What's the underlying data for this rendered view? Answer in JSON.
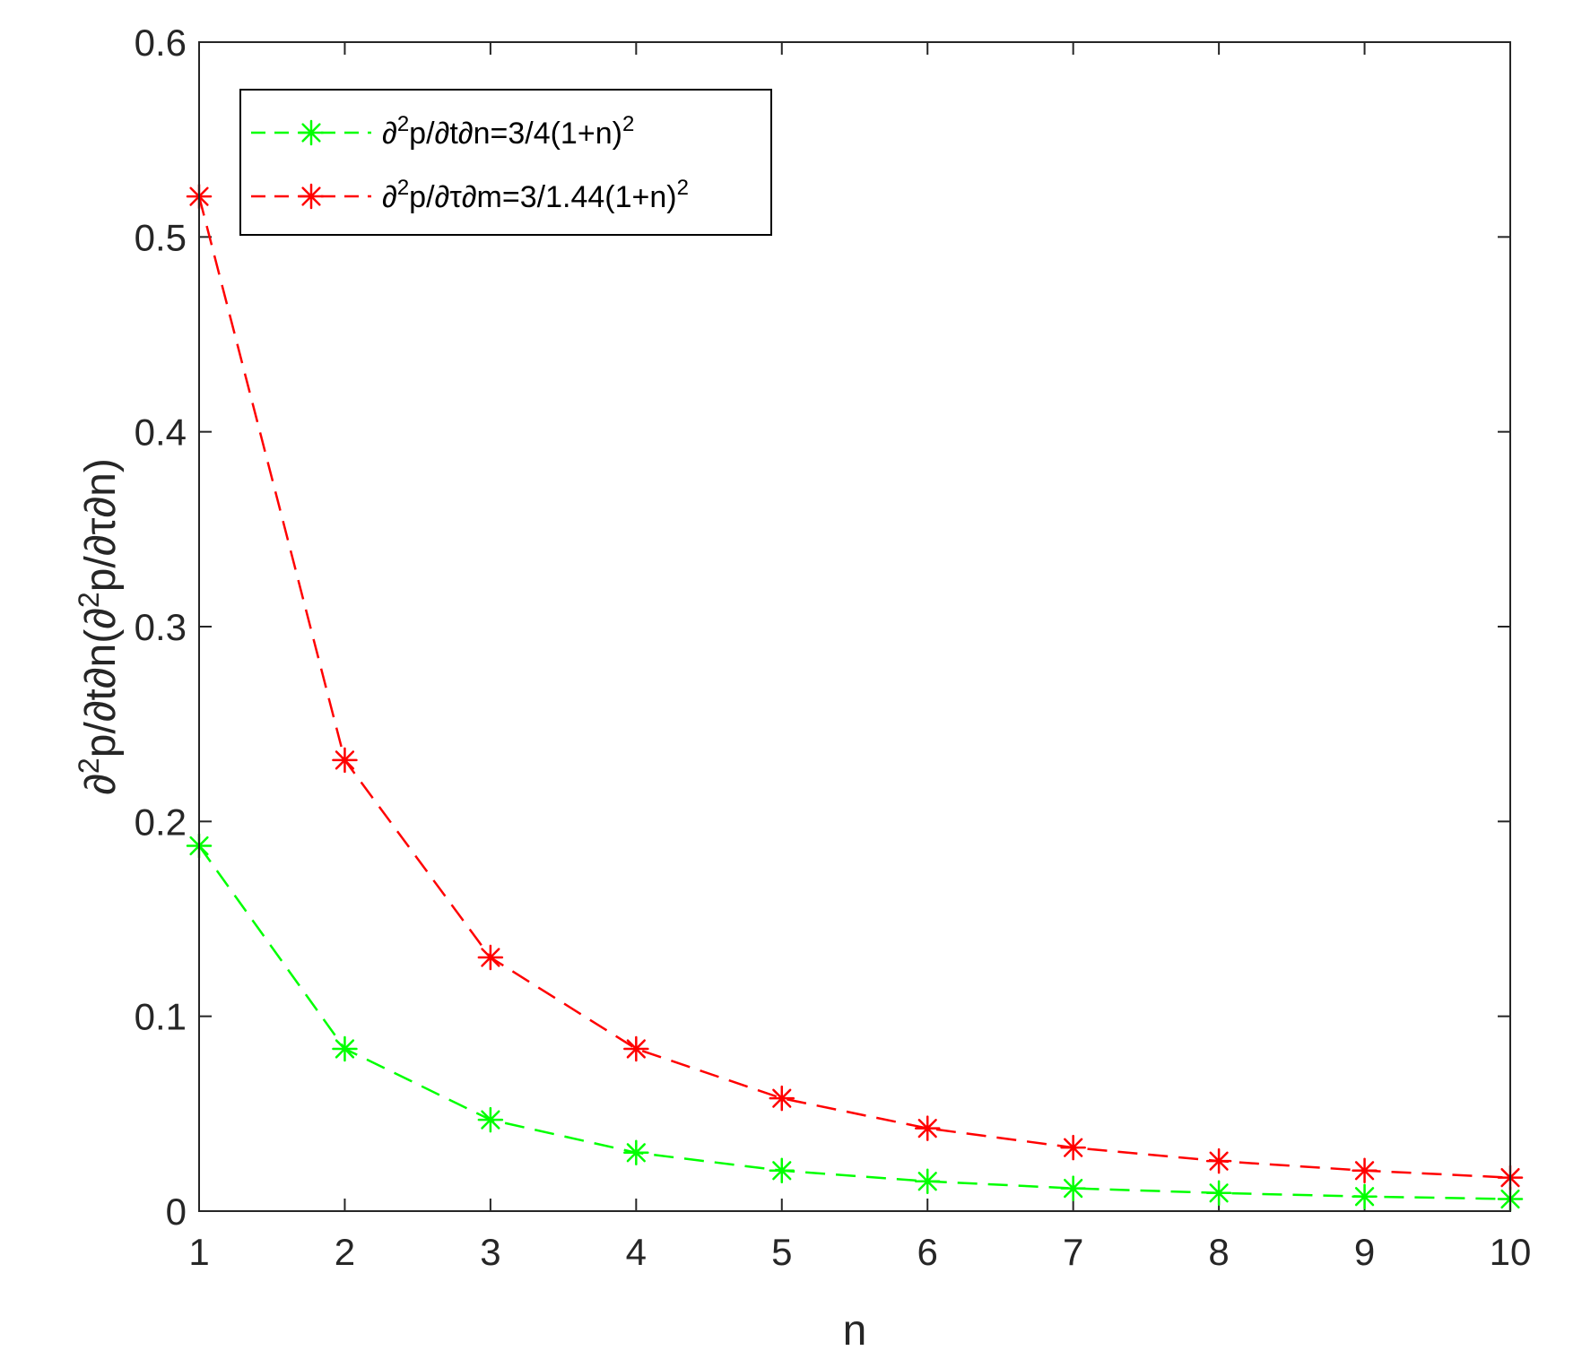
{
  "chart_data": {
    "type": "line",
    "title": "",
    "xlabel": "n",
    "ylabel": "∂2p/∂t∂n(∂2p/∂τ∂n)",
    "ylabel_parts": {
      "p1": "∂",
      "sup1": "2",
      "p2": "p/∂t∂n(∂",
      "sup2": "2",
      "p3": "p/∂τ∂n)"
    },
    "x": [
      1,
      2,
      3,
      4,
      5,
      6,
      7,
      8,
      9,
      10
    ],
    "xlim": [
      1,
      10
    ],
    "ylim": [
      0,
      0.6
    ],
    "xticks": [
      "1",
      "2",
      "3",
      "4",
      "5",
      "6",
      "7",
      "8",
      "9",
      "10"
    ],
    "yticks": [
      "0",
      "0.1",
      "0.2",
      "0.3",
      "0.4",
      "0.5",
      "0.6"
    ],
    "ytick_values": [
      0,
      0.1,
      0.2,
      0.3,
      0.4,
      0.5,
      0.6
    ],
    "grid": false,
    "legend_position": "top-left",
    "series": [
      {
        "name": "∂2p/∂t∂n=3/4(1+n)2",
        "legend_parts": {
          "p1": "∂",
          "sup1": "2",
          "p2": "p/∂t∂n=3/4(1+n)",
          "sup2": "2"
        },
        "color": "#00ff00",
        "line_style": "dashed",
        "marker": "asterisk",
        "values": [
          0.1875,
          0.0833,
          0.0469,
          0.03,
          0.0208,
          0.0153,
          0.0117,
          0.0093,
          0.0075,
          0.0062
        ]
      },
      {
        "name": "∂2p/∂τ∂m=3/1.44(1+n)2",
        "legend_parts": {
          "p1": "∂",
          "sup1": "2",
          "p2": "p/∂τ∂m=3/1.44(1+n)",
          "sup2": "2"
        },
        "color": "#ff0000",
        "line_style": "dashed",
        "marker": "asterisk",
        "values": [
          0.5208,
          0.2315,
          0.1302,
          0.0833,
          0.0579,
          0.0425,
          0.0326,
          0.0257,
          0.0208,
          0.0172
        ]
      }
    ]
  }
}
